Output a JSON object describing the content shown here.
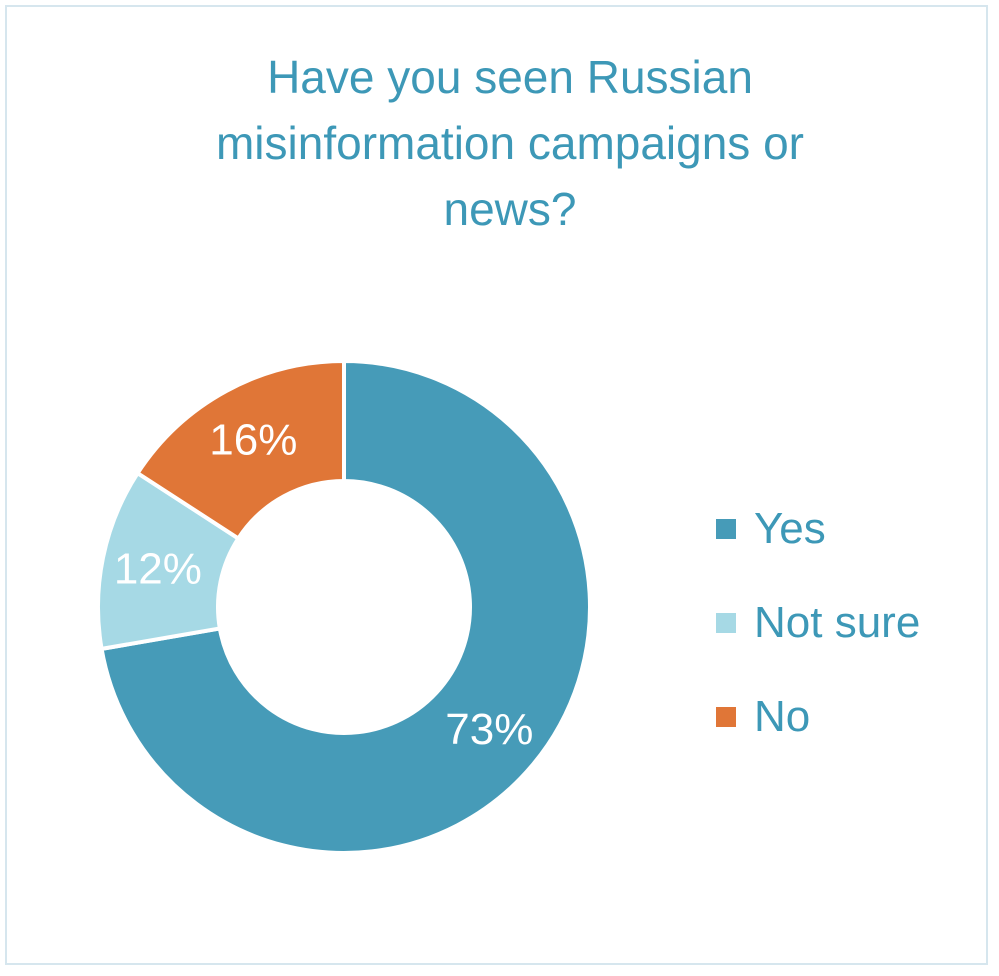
{
  "chart_data": {
    "type": "pie",
    "donut": true,
    "title": "Have you seen Russian misinformation campaigns or news?",
    "title_lines": [
      "Have you seen Russian",
      "misinformation campaigns or",
      "news?"
    ],
    "categories": [
      "Yes",
      "Not sure",
      "No"
    ],
    "values": [
      73,
      12,
      16
    ],
    "data_labels": [
      "73%",
      "12%",
      "16%"
    ],
    "colors": [
      "#469bb8",
      "#a6d9e5",
      "#e07637"
    ],
    "legend_position": "right",
    "title_color": "#3d98b7"
  }
}
